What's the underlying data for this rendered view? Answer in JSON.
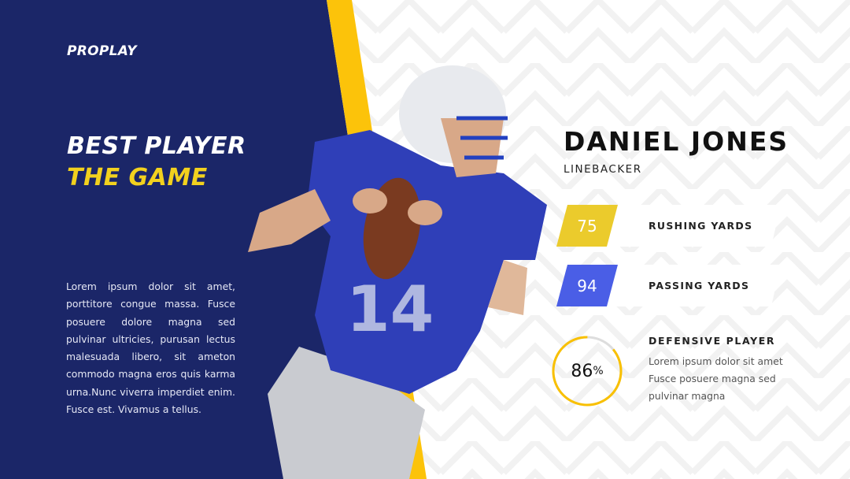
{
  "brand": "PROPLAY",
  "hero": {
    "line1": "BEST PLAYER",
    "line2": "THE GAME"
  },
  "description": "Lorem ipsum dolor sit amet, porttitore congue massa. Fusce posuere dolore magna sed pulvinar ultricies, purusan lectus malesuada libero, sit ameton commodo magna eros quis karma urna.Nunc viverra imperdiet enim. Fusce est. Vivamus a tellus.",
  "player": {
    "name": "DANIEL JONES",
    "position": "LINEBACKER",
    "jersey_number": "14"
  },
  "stats": [
    {
      "value": "75",
      "label": "RUSHING YARDS",
      "color": "#ebcb2c"
    },
    {
      "value": "94",
      "label": "PASSING YARDS",
      "color": "#4a5ee6"
    }
  ],
  "defensive": {
    "percent": 86,
    "percent_value": "86",
    "percent_sign": "%",
    "title": "DEFENSIVE PLAYER",
    "text": "Lorem ipsum dolor sit amet Fusce posuere magna sed pulvinar magna",
    "ring_color": "#f9c000"
  },
  "colors": {
    "navy": "#1b2668",
    "yellow": "#fcc30a"
  }
}
